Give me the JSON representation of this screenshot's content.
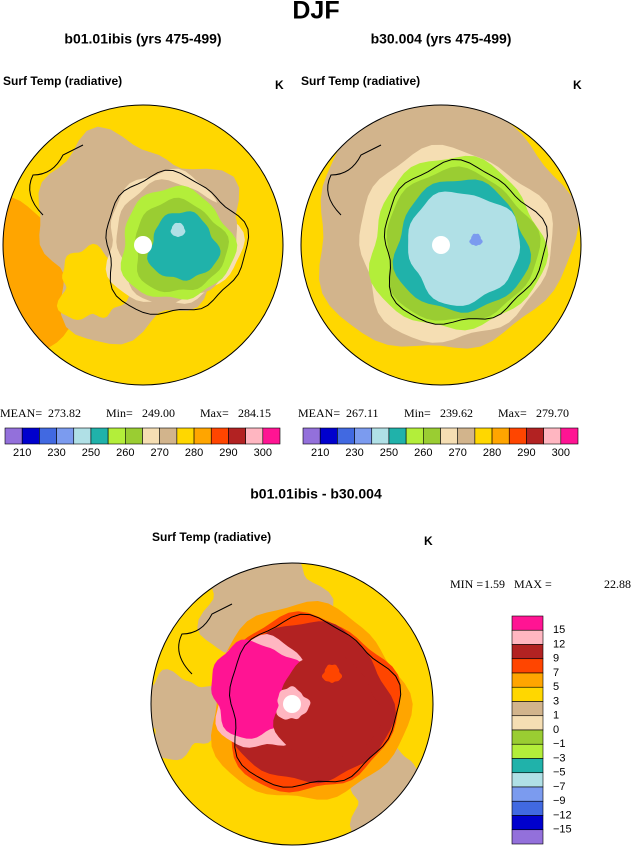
{
  "title": "DJF",
  "panels": [
    {
      "title": "b01.01ibis (yrs 475-499)",
      "variable": "Surf Temp (radiative)",
      "units": "K",
      "stats": [
        {
          "label": "MEAN=",
          "value": "273.82"
        },
        {
          "label": "Min=",
          "value": "249.00"
        },
        {
          "label": "Max=",
          "value": "284.15"
        }
      ]
    },
    {
      "title": "b30.004 (yrs 475-499)",
      "variable": "Surf Temp (radiative)",
      "units": "K",
      "stats": [
        {
          "label": "MEAN=",
          "value": "267.11"
        },
        {
          "label": "Min=",
          "value": "239.62"
        },
        {
          "label": "Max=",
          "value": "279.70"
        }
      ]
    }
  ],
  "colorbar": {
    "colors": [
      "#9370db",
      "#0000cd",
      "#4169e1",
      "#7b9bef",
      "#b0e0e6",
      "#20b2aa",
      "#b3ee3a",
      "#9acd32",
      "#f5deb3",
      "#d2b48c",
      "#ffd700",
      "#ffa500",
      "#ff4500",
      "#b22222",
      "#ffb6c1",
      "#ff1493"
    ],
    "labels": [
      "210",
      "230",
      "250",
      "260",
      "270",
      "280",
      "290",
      "300"
    ]
  },
  "difference": {
    "title": "b01.01ibis - b30.004",
    "variable": "Surf Temp (radiative)",
    "units": "K",
    "stats": [
      {
        "label": "MIN =",
        "value": "1.59"
      },
      {
        "label": "MAX =",
        "value": "22.88"
      }
    ],
    "colorbar": {
      "colors": [
        "#ff1493",
        "#ffb6c1",
        "#b22222",
        "#ff4500",
        "#ffa500",
        "#ffd700",
        "#d2b48c",
        "#f5deb3",
        "#9acd32",
        "#b3ee3a",
        "#20b2aa",
        "#b0e0e6",
        "#7b9bef",
        "#4169e1",
        "#0000cd",
        "#9370db"
      ],
      "labels": [
        "15",
        "12",
        "9",
        "7",
        "5",
        "3",
        "1",
        "0",
        "−1",
        "−3",
        "−5",
        "−7",
        "−9",
        "−12",
        "−15"
      ]
    }
  }
}
